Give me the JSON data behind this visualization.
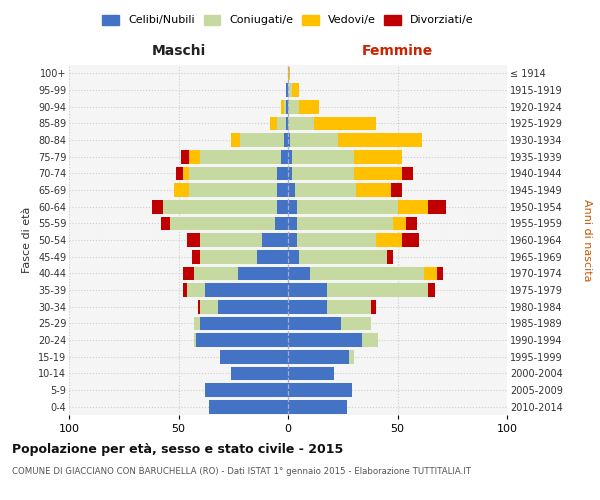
{
  "age_groups": [
    "0-4",
    "5-9",
    "10-14",
    "15-19",
    "20-24",
    "25-29",
    "30-34",
    "35-39",
    "40-44",
    "45-49",
    "50-54",
    "55-59",
    "60-64",
    "65-69",
    "70-74",
    "75-79",
    "80-84",
    "85-89",
    "90-94",
    "95-99",
    "100+"
  ],
  "birth_years": [
    "2010-2014",
    "2005-2009",
    "2000-2004",
    "1995-1999",
    "1990-1994",
    "1985-1989",
    "1980-1984",
    "1975-1979",
    "1970-1974",
    "1965-1969",
    "1960-1964",
    "1955-1959",
    "1950-1954",
    "1945-1949",
    "1940-1944",
    "1935-1939",
    "1930-1934",
    "1925-1929",
    "1920-1924",
    "1915-1919",
    "≤ 1914"
  ],
  "males": {
    "celibe": [
      36,
      38,
      26,
      31,
      42,
      40,
      32,
      38,
      23,
      14,
      12,
      6,
      5,
      5,
      5,
      3,
      2,
      1,
      1,
      1,
      0
    ],
    "coniugato": [
      0,
      0,
      0,
      0,
      1,
      3,
      8,
      8,
      20,
      26,
      28,
      48,
      52,
      40,
      40,
      37,
      20,
      4,
      1,
      0,
      0
    ],
    "vedovo": [
      0,
      0,
      0,
      0,
      0,
      0,
      0,
      0,
      0,
      0,
      0,
      0,
      0,
      7,
      3,
      5,
      4,
      3,
      1,
      0,
      0
    ],
    "divorziato": [
      0,
      0,
      0,
      0,
      0,
      0,
      1,
      2,
      5,
      4,
      6,
      4,
      5,
      0,
      3,
      4,
      0,
      0,
      0,
      0,
      0
    ]
  },
  "females": {
    "nubile": [
      27,
      29,
      21,
      28,
      34,
      24,
      18,
      18,
      10,
      5,
      4,
      4,
      4,
      3,
      2,
      2,
      1,
      0,
      0,
      0,
      0
    ],
    "coniugata": [
      0,
      0,
      0,
      2,
      7,
      14,
      20,
      46,
      52,
      40,
      36,
      44,
      46,
      28,
      28,
      28,
      22,
      12,
      5,
      2,
      0
    ],
    "vedova": [
      0,
      0,
      0,
      0,
      0,
      0,
      0,
      0,
      6,
      0,
      12,
      6,
      14,
      16,
      22,
      22,
      38,
      28,
      9,
      3,
      1
    ],
    "divorziata": [
      0,
      0,
      0,
      0,
      0,
      0,
      2,
      3,
      3,
      3,
      8,
      5,
      8,
      5,
      5,
      0,
      0,
      0,
      0,
      0,
      0
    ]
  },
  "color_celibe": "#4472c4",
  "color_coniugato": "#c5d9a0",
  "color_vedovo": "#ffc000",
  "color_divorziato": "#c00000",
  "title": "Popolazione per età, sesso e stato civile - 2015",
  "subtitle": "COMUNE DI GIACCIANO CON BARUCHELLA (RO) - Dati ISTAT 1° gennaio 2015 - Elaborazione TUTTITALIA.IT",
  "label_maschi": "Maschi",
  "label_femmine": "Femmine",
  "ylabel_left": "Fasce di età",
  "ylabel_right": "Anni di nascita",
  "legend_labels": [
    "Celibi/Nubili",
    "Coniugati/e",
    "Vedovi/e",
    "Divorziati/e"
  ],
  "xlim": 100,
  "bg_color": "#ffffff"
}
